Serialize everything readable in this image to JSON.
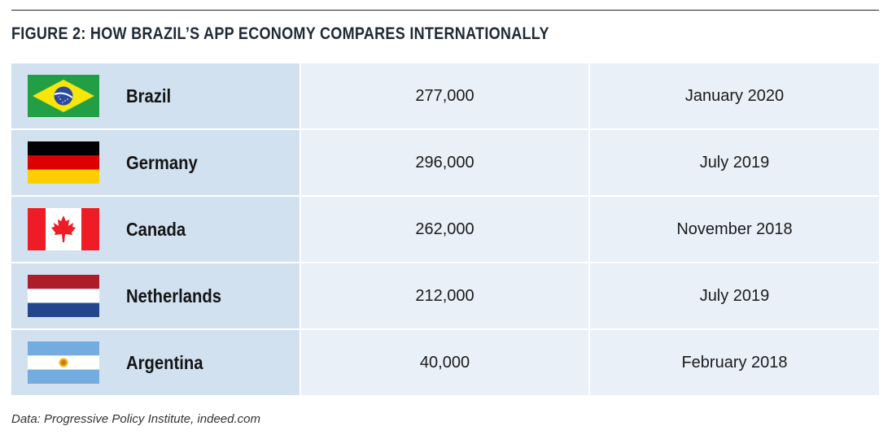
{
  "title": "FIGURE 2: HOW BRAZIL’S APP ECONOMY COMPARES INTERNATIONALLY",
  "source": "Data: Progressive Policy Institute, indeed.com",
  "chart_data": {
    "type": "table",
    "title": "FIGURE 2: HOW BRAZIL’S APP ECONOMY COMPARES INTERNATIONALLY",
    "rows": [
      {
        "country": "Brazil",
        "flag_icon": "brazil-flag-icon",
        "jobs": "277,000",
        "date": "January 2020"
      },
      {
        "country": "Germany",
        "flag_icon": "germany-flag-icon",
        "jobs": "296,000",
        "date": "July 2019"
      },
      {
        "country": "Canada",
        "flag_icon": "canada-flag-icon",
        "jobs": "262,000",
        "date": "November 2018"
      },
      {
        "country": "Netherlands",
        "flag_icon": "netherlands-flag-icon",
        "jobs": "212,000",
        "date": "July 2019"
      },
      {
        "country": "Argentina",
        "flag_icon": "argentina-flag-icon",
        "jobs": "40,000",
        "date": "February 2018"
      }
    ]
  },
  "colors": {
    "first_column": "#d1e1f0",
    "other_columns": "#e9f0f8",
    "title": "#1f2a36"
  }
}
